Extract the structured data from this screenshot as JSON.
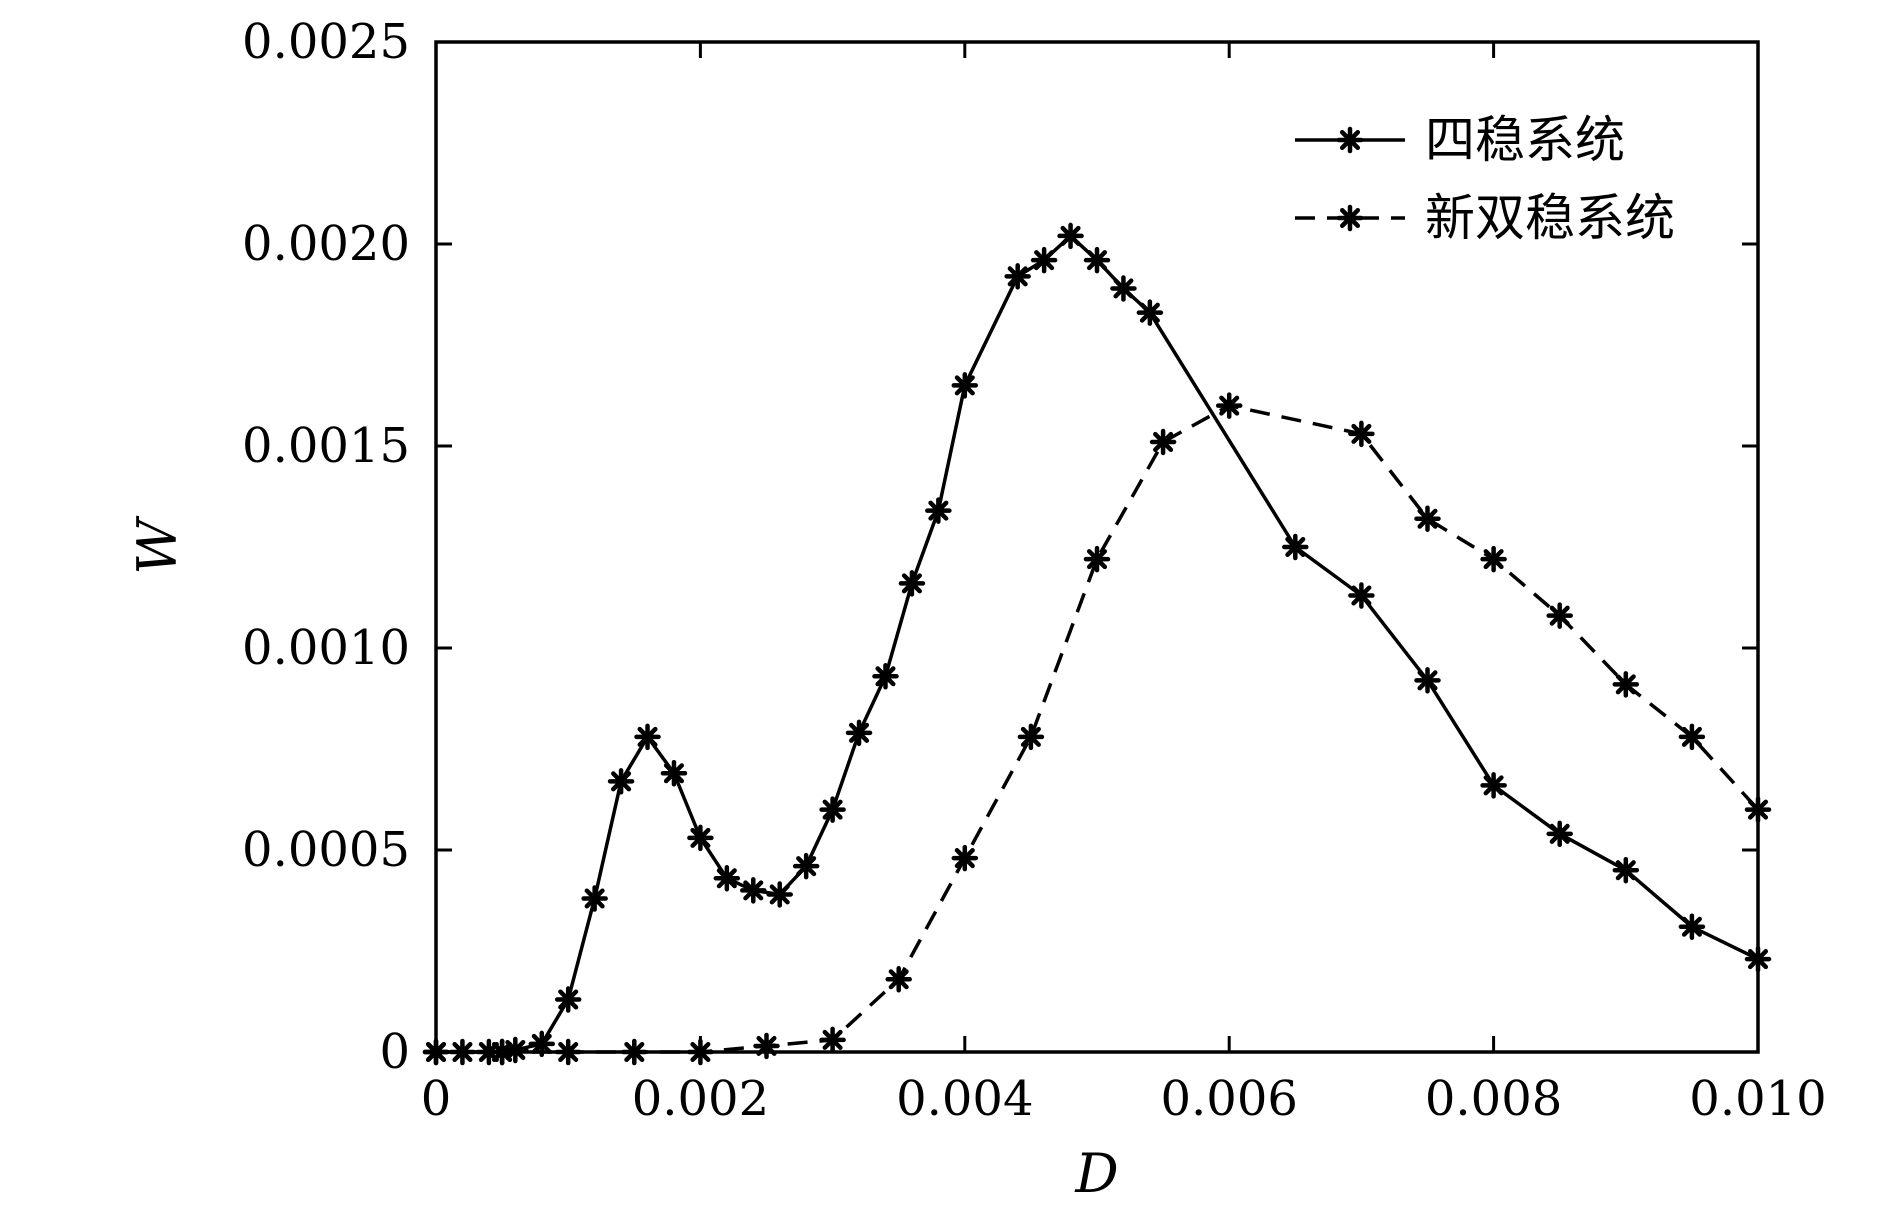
{
  "chart_data": {
    "type": "line",
    "xlabel": "D",
    "ylabel": "W",
    "xlim": [
      0,
      0.01
    ],
    "ylim": [
      0,
      0.0025
    ],
    "x_ticks": [
      0,
      0.002,
      0.004,
      0.006,
      0.008,
      0.01
    ],
    "x_tick_labels": [
      "0",
      "0.002",
      "0.004",
      "0.006",
      "0.008",
      "0.010"
    ],
    "y_ticks": [
      0,
      0.0005,
      0.001,
      0.0015,
      0.002,
      0.0025
    ],
    "y_tick_labels": [
      "0",
      "0.0005",
      "0.0010",
      "0.0015",
      "0.0020",
      "0.0025"
    ],
    "grid": false,
    "legend_position": "top-right",
    "marker": "asterisk",
    "series": [
      {
        "name": "四稳系统",
        "line_style": "solid",
        "color": "#000000",
        "x": [
          0,
          0.0002,
          0.0004,
          0.0005,
          0.0006,
          0.0008,
          0.001,
          0.0012,
          0.0014,
          0.0016,
          0.0018,
          0.002,
          0.0022,
          0.0024,
          0.0026,
          0.0028,
          0.003,
          0.0032,
          0.0034,
          0.0036,
          0.0038,
          0.004,
          0.0044,
          0.0046,
          0.0048,
          0.005,
          0.0052,
          0.0054,
          0.0065,
          0.007,
          0.0075,
          0.008,
          0.0085,
          0.009,
          0.0095,
          0.01
        ],
        "y": [
          0,
          0,
          0,
          0,
          5e-06,
          2e-05,
          0.00013,
          0.00038,
          0.00067,
          0.00078,
          0.00069,
          0.00053,
          0.00043,
          0.0004,
          0.00039,
          0.00046,
          0.0006,
          0.00079,
          0.00093,
          0.00116,
          0.00134,
          0.00165,
          0.00192,
          0.00196,
          0.00202,
          0.00196,
          0.00189,
          0.00183,
          0.00125,
          0.00113,
          0.00092,
          0.00066,
          0.00054,
          0.00045,
          0.00031,
          0.00023
        ]
      },
      {
        "name": "新双稳系统",
        "line_style": "dashed",
        "color": "#000000",
        "x": [
          0,
          0.0005,
          0.001,
          0.0015,
          0.002,
          0.0025,
          0.003,
          0.0035,
          0.004,
          0.0045,
          0.005,
          0.0055,
          0.006,
          0.007,
          0.0075,
          0.008,
          0.0085,
          0.009,
          0.0095,
          0.01
        ],
        "y": [
          0,
          0,
          0,
          0,
          0,
          1.5e-05,
          3e-05,
          0.00018,
          0.00048,
          0.00078,
          0.00122,
          0.00151,
          0.0016,
          0.00153,
          0.00132,
          0.00122,
          0.00108,
          0.00091,
          0.00078,
          0.0006
        ]
      }
    ]
  }
}
